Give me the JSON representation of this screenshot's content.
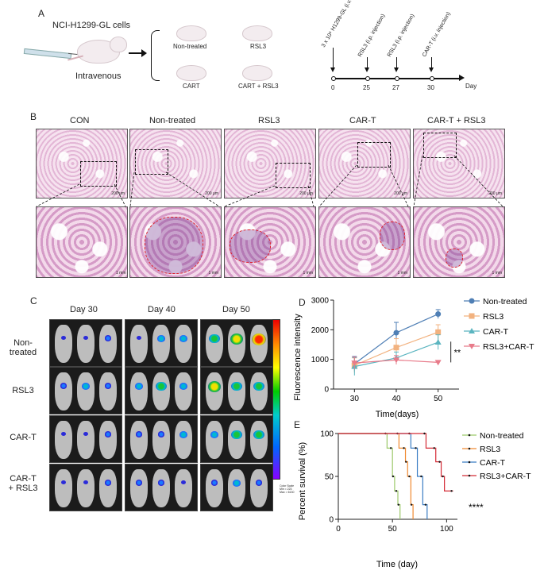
{
  "panels": {
    "A": "A",
    "B": "B",
    "C": "C",
    "D": "D",
    "E": "E"
  },
  "panelA": {
    "cells_label": "NCI-H1299-GL cells",
    "route_label": "Intravenous",
    "groups": [
      "Non-treated",
      "RSL3",
      "CART",
      "CART + RSL3"
    ],
    "timeline": {
      "events": [
        {
          "day": "0",
          "label": "3 x 10⁶ H1299-GL (i.v. injection)"
        },
        {
          "day": "25",
          "label": "RSL3 (i.p. injection)"
        },
        {
          "day": "27",
          "label": "RSL3 (i.p. injection)"
        },
        {
          "day": "30",
          "label": "CAR-T (i.v. injection)"
        }
      ],
      "unit": "Day"
    }
  },
  "panelB": {
    "columns": [
      "CON",
      "Non-treated",
      "RSL3",
      "CAR-T",
      "CAR-T + RSL3"
    ],
    "scale_top": "200 μm",
    "scale_bottom": "1 mm"
  },
  "panelC": {
    "days": [
      "Day 30",
      "Day 40",
      "Day 50"
    ],
    "rows": [
      "Non-treated",
      "RSL3",
      "CAR-T",
      "CAR-T\n+ RSL3"
    ],
    "colorbar_caption": "Color Scale Min = 223 Max = 6130"
  },
  "chart_data": [
    {
      "type": "line",
      "ylabel": "Fluorescence intensity",
      "xlabel": "Time(days)",
      "x": [
        30,
        40,
        50
      ],
      "xticks": [
        "30",
        "40",
        "50"
      ],
      "yticks": [
        "0",
        "1000",
        "2000",
        "3000"
      ],
      "ylim": [
        0,
        3000
      ],
      "series": [
        {
          "name": "Non-treated",
          "values": [
            850,
            1900,
            2530
          ],
          "err": [
            250,
            350,
            150
          ],
          "color": "#4f7fb5",
          "marker": "circle"
        },
        {
          "name": "RSL3",
          "values": [
            800,
            1400,
            1920
          ],
          "err": [
            250,
            300,
            250
          ],
          "color": "#f2b27f",
          "marker": "square"
        },
        {
          "name": "CAR-T",
          "values": [
            760,
            1050,
            1580
          ],
          "err": [
            300,
            200,
            250
          ],
          "color": "#5bb5c0",
          "marker": "triangle-up"
        },
        {
          "name": "RSL3+CAR-T",
          "values": [
            880,
            980,
            900
          ],
          "err": [
            200,
            150,
            0
          ],
          "color": "#e87b8a",
          "marker": "triangle-down"
        }
      ],
      "annotation": "**",
      "legend": "right"
    },
    {
      "type": "line",
      "ylabel": "Percent survival (%)",
      "xlabel": "Time (day)",
      "xticks": [
        "0",
        "50",
        "100"
      ],
      "yticks": [
        "0",
        "50",
        "100"
      ],
      "xlim": [
        0,
        110
      ],
      "ylim": [
        0,
        100
      ],
      "series": [
        {
          "name": "Non-treated",
          "color": "#9cc96a",
          "x": [
            0,
            45,
            45,
            50,
            50,
            52,
            52,
            55,
            55,
            57,
            57
          ],
          "y": [
            100,
            100,
            83,
            83,
            50,
            50,
            33,
            33,
            17,
            17,
            0
          ]
        },
        {
          "name": "RSL3",
          "color": "#f08a30",
          "x": [
            0,
            56,
            56,
            62,
            62,
            64,
            64,
            67,
            67,
            69,
            69
          ],
          "y": [
            100,
            100,
            83,
            83,
            67,
            67,
            50,
            50,
            17,
            17,
            0
          ]
        },
        {
          "name": "CAR-T",
          "color": "#3b7dc4",
          "x": [
            0,
            67,
            67,
            73,
            73,
            78,
            78,
            82,
            82
          ],
          "y": [
            100,
            100,
            83,
            83,
            50,
            50,
            17,
            17,
            0
          ]
        },
        {
          "name": "RSL3+CAR-T",
          "color": "#d42a35",
          "x": [
            0,
            81,
            81,
            90,
            90,
            95,
            95,
            98,
            98,
            106
          ],
          "y": [
            100,
            100,
            83,
            83,
            67,
            67,
            50,
            50,
            33,
            33
          ]
        }
      ],
      "annotation": "****",
      "legend": "right"
    }
  ]
}
